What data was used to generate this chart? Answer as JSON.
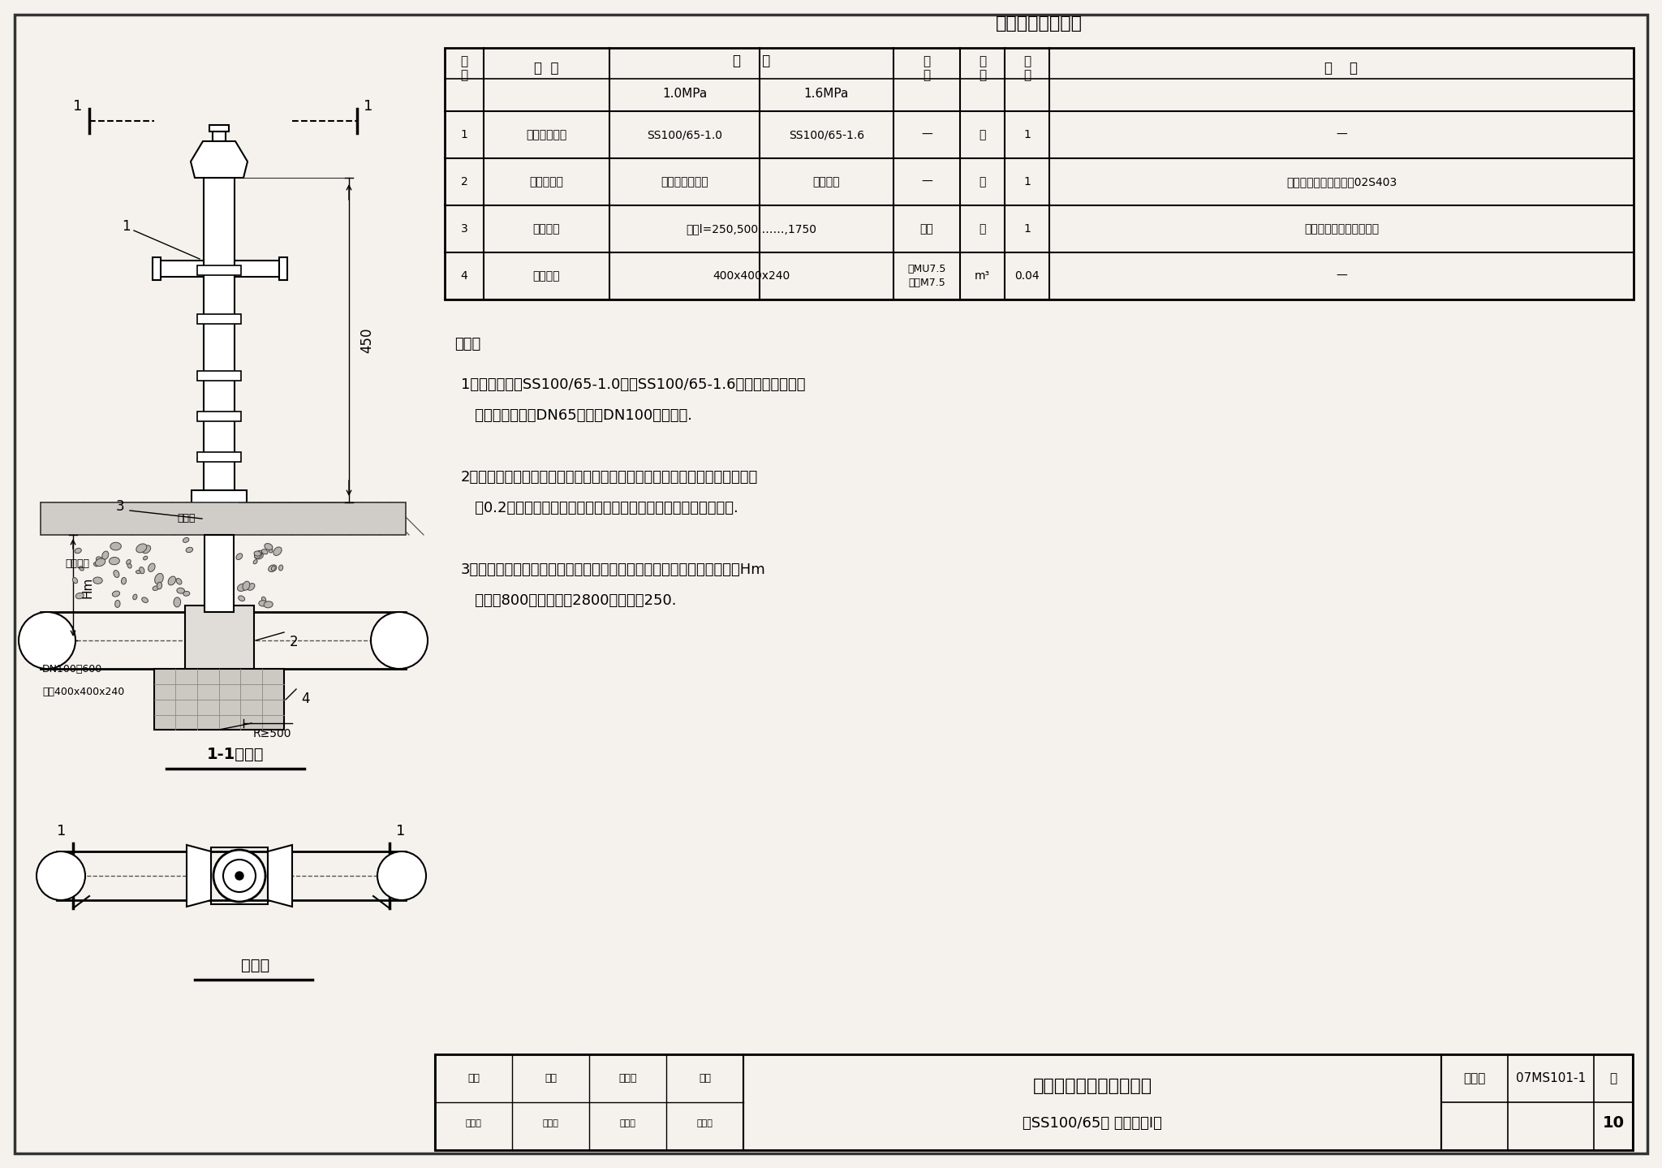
{
  "bg_color": "#ede9e2",
  "page_bg": "#f5f2ed",
  "title": "主要设备及材料表",
  "table_rows": [
    [
      "1",
      "地上式消火栓",
      "SS100/65-1.0",
      "SS100/65-1.6",
      "—",
      "套",
      "1",
      "—"
    ],
    [
      "2",
      "消火栓三通",
      "铸铁或钢制三通",
      "钢制三通",
      "—",
      "个",
      "1",
      "钢制三通详见国标图集02S403"
    ],
    [
      "3",
      "法兰接管",
      "长度l=250,500,……,1750",
      "",
      "铸铁",
      "个",
      "1",
      "接管长度由设计人员选定"
    ],
    [
      "4",
      "砖砌支墩",
      "400x400x240",
      "",
      "砖MU7.5\n砂浆M7.5",
      "m³",
      "0.04",
      "—"
    ]
  ],
  "notes_title": "说明：",
  "note1_line1": "1．消火栓采用SS100/65-1.0型或SS100/65-1.6型地上式消火栓，",
  "note1_line2": "   该消火栓有两个DN65和一个DN100的出水口.",
  "note2_line1": "2．凡埋入土中的法兰接口涂沥青冷底子油及热沥青各两道，并用沥青麻布或",
  "note2_line2": "   用0.2厚塑料薄膜包严，其余管道和管件的防腐做法由设计人确定.",
  "note3_line1": "3．根据管道埋深的不同，可选用不同长度的法兰接管，使管道覆土深度Hm",
  "note3_line2": "   可以从800逐档加高到2800，每档为250.",
  "bottom_title1": "室外地上式消火栓安装图",
  "bottom_title2": "（SS100/65型 干管安装Ⅰ）",
  "figure_num": "07MS101-1",
  "page_num": "10",
  "section_label": "1-1剖面图",
  "plan_label": "平面图",
  "label_DN": "DN100～600",
  "label_support": "支墩400x400x240",
  "label_gravel": "碎石回填",
  "label_drain": "泄水口",
  "label_Hm": "Hm",
  "label_R500": "R≥500",
  "label_450": "450"
}
